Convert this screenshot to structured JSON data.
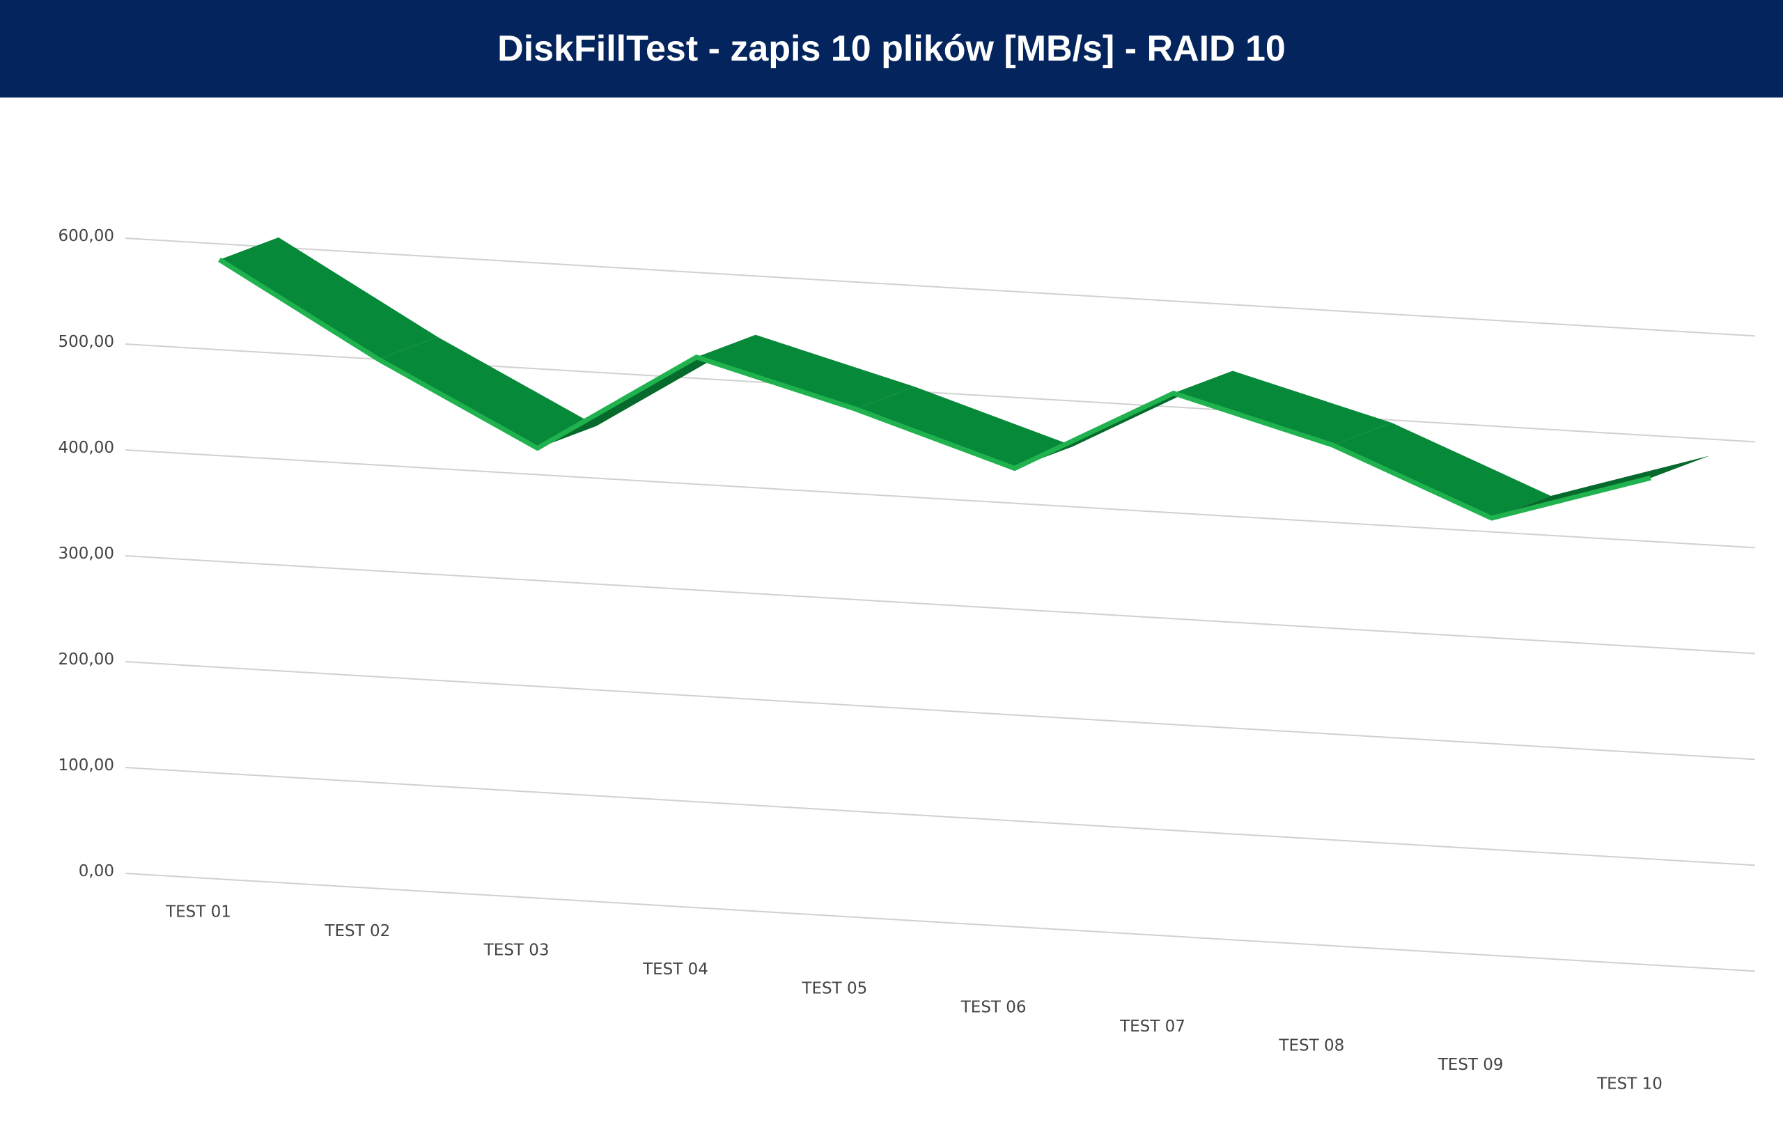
{
  "chart_data": {
    "type": "line3d",
    "title": "DiskFillTest - zapis 10 plików [MB/s] - RAID 10",
    "categories": [
      "TEST 01",
      "TEST 02",
      "TEST 03",
      "TEST 04",
      "TEST 05",
      "TEST 06",
      "TEST 07",
      "TEST 08",
      "TEST 09",
      "TEST 10"
    ],
    "values": [
      585,
      500,
      425,
      520,
      480,
      433,
      513,
      473,
      413,
      460
    ],
    "color": "#07893a",
    "ylim": [
      0,
      600
    ],
    "yticks": [
      {
        "value": 0,
        "label": "0,00"
      },
      {
        "value": 100,
        "label": "100,00"
      },
      {
        "value": 200,
        "label": "200,00"
      },
      {
        "value": 300,
        "label": "300,00"
      },
      {
        "value": 400,
        "label": "400,00"
      },
      {
        "value": 500,
        "label": "500,00"
      },
      {
        "value": 600,
        "label": "600,00"
      }
    ],
    "grid": true
  }
}
